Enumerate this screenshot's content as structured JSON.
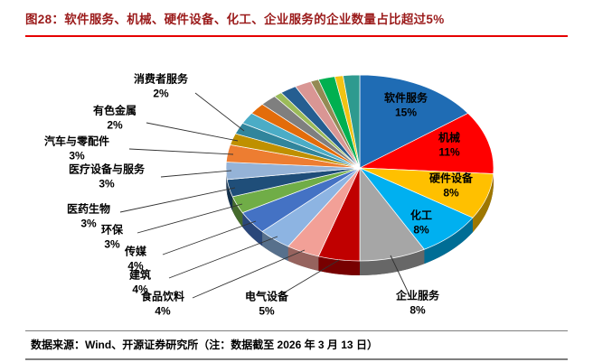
{
  "header": {
    "title": "图28：软件服务、机械、硬件设备、化工、企业服务的企业数量占比超过5%"
  },
  "footer": {
    "source": "数据来源：Wind、开源证券研究所（注：数据截至 2026 年 3 月 13 日）"
  },
  "colors": {
    "title_text": "#9b1b1b",
    "title_underline": "#e60000",
    "leader_line": "#333333"
  },
  "chart_data": {
    "type": "pie",
    "style": "3d-pie",
    "title": "软件服务、机械、硬件设备、化工、企业服务的企业数量占比超过5%",
    "unit": "%",
    "legend_position": "none",
    "slices": [
      {
        "label": "软件服务",
        "value": 15,
        "pct": "15%",
        "color": "#1f6cb4"
      },
      {
        "label": "机械",
        "value": 11,
        "pct": "11%",
        "color": "#ff0000"
      },
      {
        "label": "硬件设备",
        "value": 8,
        "pct": "8%",
        "color": "#ffc000"
      },
      {
        "label": "化工",
        "value": 8,
        "pct": "8%",
        "color": "#00b0f0"
      },
      {
        "label": "企业服务",
        "value": 8,
        "pct": "8%",
        "color": "#a6a6a6"
      },
      {
        "label": "电气设备",
        "value": 5,
        "pct": "5%",
        "color": "#c00000"
      },
      {
        "label": "食品饮料",
        "value": 4,
        "pct": "4%",
        "color": "#f2a097"
      },
      {
        "label": "建筑",
        "value": 4,
        "pct": "4%",
        "color": "#8db4e2"
      },
      {
        "label": "传媒",
        "value": 4,
        "pct": "4%",
        "color": "#4472c4"
      },
      {
        "label": "环保",
        "value": 3,
        "pct": "3%",
        "color": "#70ad47"
      },
      {
        "label": "医药生物",
        "value": 3,
        "pct": "3%",
        "color": "#1f4e79"
      },
      {
        "label": "医疗设备与服务",
        "value": 3,
        "pct": "3%",
        "color": "#95b3d7"
      },
      {
        "label": "汽车与零配件",
        "value": 3,
        "pct": "3%",
        "color": "#ed7d31"
      },
      {
        "label": "有色金属",
        "value": 2,
        "pct": "2%",
        "color": "#bf9000"
      },
      {
        "label": "消费者服务",
        "value": 2,
        "pct": "2%",
        "color": "#31859c"
      },
      {
        "label": "",
        "value": 2,
        "pct": "",
        "color": "#4bacc6"
      },
      {
        "label": "",
        "value": 2,
        "pct": "",
        "color": "#e36c0a"
      },
      {
        "label": "",
        "value": 2,
        "pct": "",
        "color": "#7f7f7f"
      },
      {
        "label": "",
        "value": 1,
        "pct": "",
        "color": "#9bbb59"
      },
      {
        "label": "",
        "value": 2,
        "pct": "",
        "color": "#255e91"
      },
      {
        "label": "",
        "value": 2,
        "pct": "",
        "color": "#d99694"
      },
      {
        "label": "",
        "value": 1,
        "pct": "",
        "color": "#948a54"
      },
      {
        "label": "",
        "value": 2,
        "pct": "",
        "color": "#00b050"
      },
      {
        "label": "",
        "value": 1,
        "pct": "",
        "color": "#f2c314"
      },
      {
        "label": "",
        "value": 2,
        "pct": "",
        "color": "#2e9a8f"
      }
    ]
  }
}
